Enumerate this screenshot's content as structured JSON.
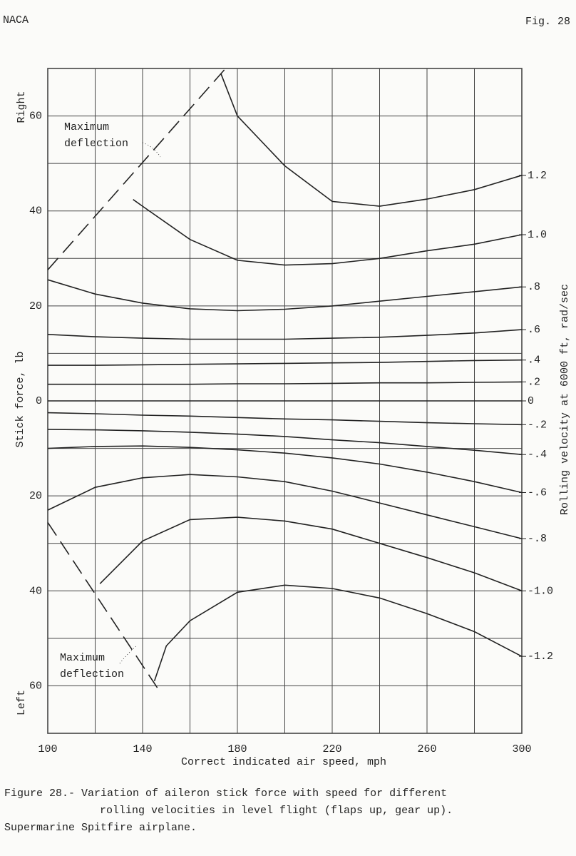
{
  "header": {
    "left": "NACA",
    "right": "Fig. 28"
  },
  "chart_data": {
    "type": "line",
    "xlabel": "Correct indicated air speed, mph",
    "ylabel": "Stick force, lb",
    "y2label": "Rolling velocity at 6000 ft, rad/sec",
    "side_labels": {
      "top": "Right",
      "bottom": "Left"
    },
    "xlim": [
      100,
      300
    ],
    "xticks": [
      100,
      140,
      180,
      220,
      260,
      300
    ],
    "xminor": [
      120,
      160,
      200,
      240,
      280
    ],
    "ylim": [
      -70,
      70
    ],
    "yticks": [
      60,
      40,
      20,
      0,
      {
        "value": -20,
        "label": "20"
      },
      {
        "value": -40,
        "label": "40"
      },
      {
        "value": -60,
        "label": "60"
      }
    ],
    "yminor": [
      70,
      50,
      30,
      10,
      -10,
      -30,
      -50,
      -70
    ],
    "grid": true,
    "color": "#222",
    "series": [
      {
        "name": "1.2",
        "x": [
          173,
          180,
          200,
          220,
          240,
          260,
          280,
          300
        ],
        "values": [
          69,
          60,
          49.5,
          42,
          41,
          42.5,
          44.5,
          47.5
        ]
      },
      {
        "name": "1.0",
        "x": [
          136,
          140,
          160,
          180,
          200,
          220,
          240,
          260,
          280,
          300
        ],
        "values": [
          42.4,
          41,
          34,
          29.6,
          28.6,
          28.9,
          30,
          31.6,
          33,
          35
        ]
      },
      {
        "name": ".8",
        "x": [
          100,
          120,
          140,
          160,
          180,
          200,
          220,
          240,
          260,
          280,
          300
        ],
        "values": [
          25.5,
          22.5,
          20.6,
          19.4,
          19,
          19.3,
          20,
          21,
          22,
          23,
          24
        ]
      },
      {
        "name": ".6",
        "x": [
          100,
          120,
          140,
          160,
          180,
          200,
          220,
          240,
          260,
          280,
          300
        ],
        "values": [
          14,
          13.5,
          13.2,
          13,
          13,
          13,
          13.2,
          13.4,
          13.8,
          14.3,
          15
        ]
      },
      {
        "name": ".4",
        "x": [
          100,
          120,
          140,
          160,
          180,
          200,
          220,
          240,
          260,
          280,
          300
        ],
        "values": [
          7.5,
          7.5,
          7.6,
          7.7,
          7.8,
          7.9,
          8,
          8.1,
          8.3,
          8.5,
          8.6
        ]
      },
      {
        "name": ".2",
        "x": [
          100,
          120,
          140,
          160,
          180,
          200,
          220,
          240,
          260,
          280,
          300
        ],
        "values": [
          3.5,
          3.5,
          3.5,
          3.5,
          3.6,
          3.6,
          3.7,
          3.8,
          3.8,
          3.9,
          4
        ]
      },
      {
        "name": "0",
        "x": [
          100,
          300
        ],
        "values": [
          0,
          0
        ]
      },
      {
        "name": "-.2",
        "x": [
          100,
          120,
          140,
          160,
          180,
          200,
          220,
          240,
          260,
          280,
          300
        ],
        "values": [
          -2.5,
          -2.7,
          -3,
          -3.2,
          -3.5,
          -3.8,
          -4,
          -4.3,
          -4.6,
          -4.8,
          -5
        ]
      },
      {
        "name": "-.4",
        "x": [
          100,
          120,
          140,
          160,
          180,
          200,
          220,
          240,
          260,
          280,
          300
        ],
        "values": [
          -6,
          -6.1,
          -6.3,
          -6.6,
          -7,
          -7.5,
          -8.2,
          -8.8,
          -9.6,
          -10.4,
          -11.3
        ]
      },
      {
        "name": "-.6",
        "x": [
          100,
          120,
          140,
          160,
          180,
          200,
          220,
          240,
          260,
          280,
          300
        ],
        "values": [
          -10,
          -9.6,
          -9.5,
          -9.8,
          -10.3,
          -11,
          -12,
          -13.3,
          -15,
          -17,
          -19.3
        ]
      },
      {
        "name": "-.8",
        "x": [
          100,
          120,
          140,
          160,
          180,
          200,
          220,
          240,
          260,
          280,
          300
        ],
        "values": [
          -23,
          -18.2,
          -16.2,
          -15.5,
          -16,
          -17,
          -19,
          -21.5,
          -24,
          -26.5,
          -29
        ]
      },
      {
        "name": "-1.0",
        "x": [
          122,
          140,
          160,
          180,
          200,
          220,
          240,
          260,
          280,
          300
        ],
        "values": [
          -38.5,
          -29.5,
          -25,
          -24.5,
          -25.3,
          -27,
          -30,
          -33,
          -36.2,
          -40
        ]
      },
      {
        "name": "-1.2",
        "x": [
          145,
          150,
          160,
          180,
          200,
          220,
          240,
          260,
          280,
          300
        ],
        "values": [
          -59,
          -51.6,
          -46.3,
          -40.3,
          -38.8,
          -39.5,
          -41.5,
          -44.8,
          -48.6,
          -53.8
        ]
      }
    ],
    "limits": [
      {
        "x": [
          100,
          175
        ],
        "values": [
          27.6,
          70
        ],
        "dash": true
      },
      {
        "x": [
          100,
          147
        ],
        "values": [
          -25.6,
          -61
        ],
        "dash": true
      }
    ],
    "annotations": [
      {
        "lines": [
          "Maximum",
          "deflection"
        ]
      },
      {
        "lines": [
          "Maximum",
          "deflection"
        ]
      }
    ]
  },
  "caption": [
    "Figure 28.- Variation of aileron stick force with speed for different",
    "rolling velocities in level flight (flaps up, gear up).",
    "Supermarine Spitfire airplane."
  ]
}
